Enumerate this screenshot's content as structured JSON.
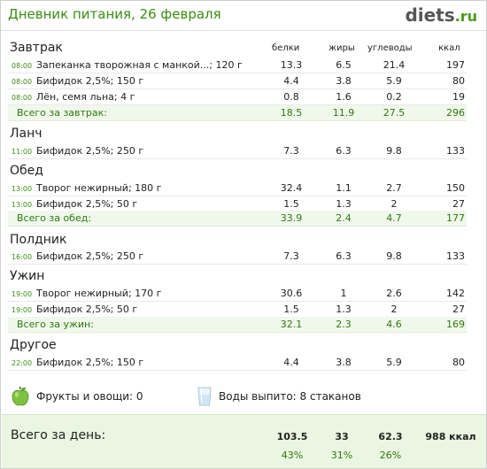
{
  "header": {
    "title": "Дневник питания, 26 февраля",
    "logo_main": "diets",
    "logo_tld": ".ru"
  },
  "columns": {
    "protein": "белки",
    "fat": "жиры",
    "carbs": "углеводы",
    "kcal": "ккал"
  },
  "meals": {
    "breakfast": {
      "title": "Завтрак",
      "items": [
        {
          "time": "08:00",
          "name": "Запеканка  творожная  с  манкой...; 120 г",
          "protein": "13.3",
          "fat": "6.5",
          "carbs": "21.4",
          "kcal": "197"
        },
        {
          "time": "08:00",
          "name": "Бифидок 2,5%; 150 г",
          "protein": "4.4",
          "fat": "3.8",
          "carbs": "5.9",
          "kcal": "80"
        },
        {
          "time": "08:00",
          "name": "Лён, семя льна; 4 г",
          "protein": "0.8",
          "fat": "1.6",
          "carbs": "0.2",
          "kcal": "19"
        }
      ],
      "total": {
        "label": "Всего за завтрак:",
        "protein": "18.5",
        "fat": "11.9",
        "carbs": "27.5",
        "kcal": "296"
      }
    },
    "lunch": {
      "title": "Ланч",
      "items": [
        {
          "time": "11:00",
          "name": "Бифидок 2,5%; 250 г",
          "protein": "7.3",
          "fat": "6.3",
          "carbs": "9.8",
          "kcal": "133"
        }
      ]
    },
    "dinner": {
      "title": "Обед",
      "items": [
        {
          "time": "13:00",
          "name": "Творог нежирный; 180 г",
          "protein": "32.4",
          "fat": "1.1",
          "carbs": "2.7",
          "kcal": "150"
        },
        {
          "time": "13:00",
          "name": "Бифидок 2,5%; 50 г",
          "protein": "1.5",
          "fat": "1.3",
          "carbs": "2",
          "kcal": "27"
        }
      ],
      "total": {
        "label": "Всего за обед:",
        "protein": "33.9",
        "fat": "2.4",
        "carbs": "4.7",
        "kcal": "177"
      }
    },
    "snack": {
      "title": "Полдник",
      "items": [
        {
          "time": "16:00",
          "name": "Бифидок 2,5%; 250 г",
          "protein": "7.3",
          "fat": "6.3",
          "carbs": "9.8",
          "kcal": "133"
        }
      ]
    },
    "supper": {
      "title": "Ужин",
      "items": [
        {
          "time": "19:00",
          "name": "Творог нежирный; 170 г",
          "protein": "30.6",
          "fat": "1",
          "carbs": "2.6",
          "kcal": "142"
        },
        {
          "time": "19:00",
          "name": "Бифидок 2,5%; 50 г",
          "protein": "1.5",
          "fat": "1.3",
          "carbs": "2",
          "kcal": "27"
        }
      ],
      "total": {
        "label": "Всего за ужин:",
        "protein": "32.1",
        "fat": "2.3",
        "carbs": "4.6",
        "kcal": "169"
      }
    },
    "other": {
      "title": "Другое",
      "items": [
        {
          "time": "22:00",
          "name": "Бифидок 2,5%; 150 г",
          "protein": "4.4",
          "fat": "3.8",
          "carbs": "5.9",
          "kcal": "80"
        }
      ]
    }
  },
  "extras": {
    "fruits_label": "Фрукты и овощи: 0",
    "water_label": "Воды выпито: 8 стаканов",
    "apple_icon": "apple-icon",
    "glass_icon": "water-glass-icon"
  },
  "day_total": {
    "label": "Всего за день:",
    "protein": "103.5",
    "fat": "33",
    "carbs": "62.3",
    "kcal": "988 ккал",
    "protein_pct": "43%",
    "fat_pct": "31%",
    "carbs_pct": "26%"
  },
  "colors": {
    "accent": "#3a8d13",
    "total_bg": "#f0f8ec",
    "day_bg": "#eaf6e2"
  }
}
